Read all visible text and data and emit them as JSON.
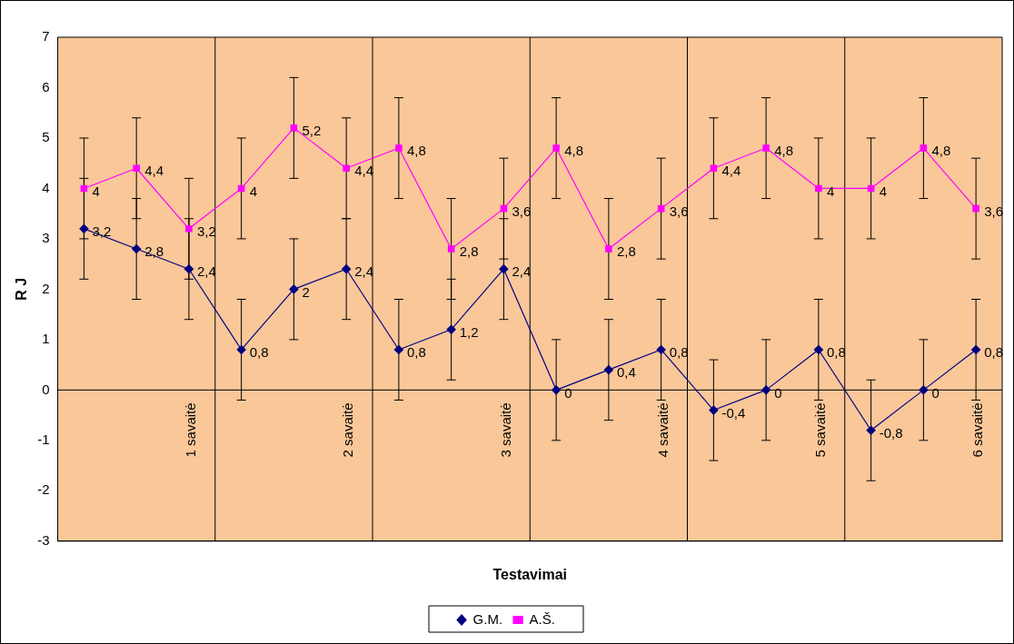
{
  "chart_data": {
    "type": "line",
    "xlabel": "Testavimai",
    "ylabel": "R J",
    "categories": [
      null,
      null,
      "1 savaitė",
      null,
      null,
      "2 savaitė",
      null,
      null,
      "3 savaitė",
      null,
      null,
      "4 savaitė",
      null,
      null,
      "5 savaitė",
      null,
      null,
      "6 savaitė"
    ],
    "series": [
      {
        "name": "G.M.",
        "color": "#000080",
        "marker": "diamond",
        "values": [
          3.2,
          2.8,
          2.4,
          0.8,
          2,
          2.4,
          0.8,
          1.2,
          2.4,
          0,
          0.4,
          0.8,
          -0.4,
          0,
          0.8,
          -0.8,
          0,
          0.8
        ],
        "errors": [
          1,
          1,
          1,
          1,
          1,
          1,
          1,
          1,
          1,
          1,
          1,
          1,
          1,
          1,
          1,
          1,
          1,
          1
        ],
        "value_labels": [
          "3,2",
          "2,8",
          "2,4",
          "0,8",
          "2",
          "2,4",
          "0,8",
          "1,2",
          "2,4",
          "0",
          "0,4",
          "0,8",
          "-0,4",
          "0",
          "0,8",
          "-0,8",
          "0",
          "0,8"
        ]
      },
      {
        "name": "A.Š.",
        "color": "#ff00ff",
        "marker": "square",
        "values": [
          4,
          4.4,
          3.2,
          4,
          5.2,
          4.4,
          4.8,
          2.8,
          3.6,
          4.8,
          2.8,
          3.6,
          4.4,
          4.8,
          4,
          4,
          4.8,
          3.6
        ],
        "errors": [
          1,
          1,
          1,
          1,
          1,
          1,
          1,
          1,
          1,
          1,
          1,
          1,
          1,
          1,
          1,
          1,
          1,
          1
        ],
        "value_labels": [
          "4",
          "4,4",
          "3,2",
          "4",
          "5,2",
          "4,4",
          "4,8",
          "2,8",
          "3,6",
          "4,8",
          "2,8",
          "3,6",
          "4,4",
          "4,8",
          "4",
          "4",
          "4,8",
          "3,6"
        ]
      }
    ],
    "ylim": [
      -3,
      7
    ],
    "yticks": [
      -3,
      -2,
      -1,
      0,
      1,
      2,
      3,
      4,
      5,
      6,
      7
    ],
    "grid": "x",
    "legend": "bottom",
    "line_style": "solid"
  }
}
